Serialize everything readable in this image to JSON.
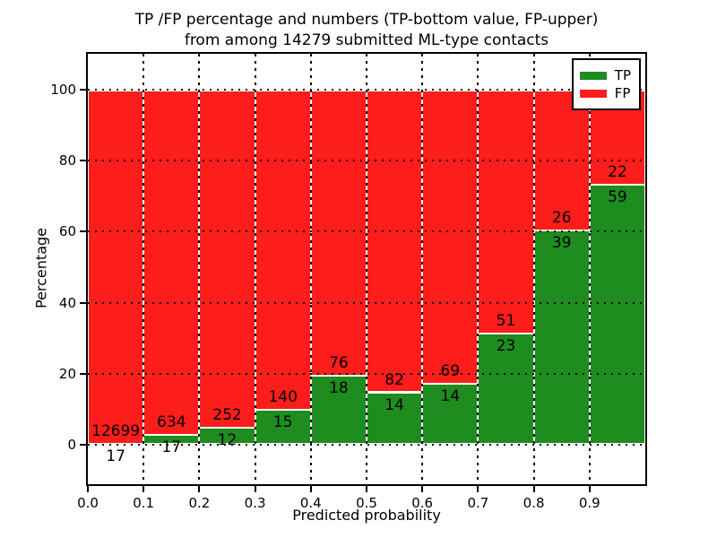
{
  "chart_data": {
    "type": "bar",
    "stacked": true,
    "title": "TP /FP percentage and numbers (TP-bottom value, FP-upper) from among 14279 submitted ML-type contacts",
    "title_lines": [
      "TP /FP percentage and numbers (TP-bottom value, FP-upper)",
      "from among 14279 submitted ML-type contacts"
    ],
    "total_contacts": 14279,
    "xlabel": "Predicted probability",
    "ylabel": "Percentage",
    "bin_start": [
      0.0,
      0.1,
      0.2,
      0.3,
      0.4,
      0.5,
      0.6,
      0.7,
      0.8,
      0.9
    ],
    "bin_width": 0.1,
    "series": [
      {
        "name": "TP",
        "color": "#1e8c1e",
        "counts": [
          17,
          17,
          12,
          15,
          18,
          14,
          14,
          23,
          39,
          59
        ]
      },
      {
        "name": "FP",
        "color": "#fd1d1b",
        "counts": [
          12699,
          634,
          252,
          140,
          76,
          82,
          69,
          51,
          26,
          22
        ]
      }
    ],
    "tp_percent": [
      0.13,
      2.61,
      4.55,
      9.68,
      19.15,
      14.58,
      16.87,
      31.08,
      60.0,
      72.84
    ],
    "stack_total_percent": 100,
    "x_ticks": [
      "0.0",
      "0.1",
      "0.2",
      "0.3",
      "0.4",
      "0.5",
      "0.6",
      "0.7",
      "0.8",
      "0.9"
    ],
    "y_ticks": [
      "0",
      "20",
      "40",
      "60",
      "80",
      "100"
    ],
    "xlim": [
      0.0,
      1.0
    ],
    "ylim": [
      -11,
      110
    ],
    "grid": true,
    "legend": {
      "position": "upper-right",
      "entries": [
        {
          "label": "TP",
          "color": "#1e8c1e"
        },
        {
          "label": "FP",
          "color": "#fd1d1b"
        }
      ]
    }
  }
}
